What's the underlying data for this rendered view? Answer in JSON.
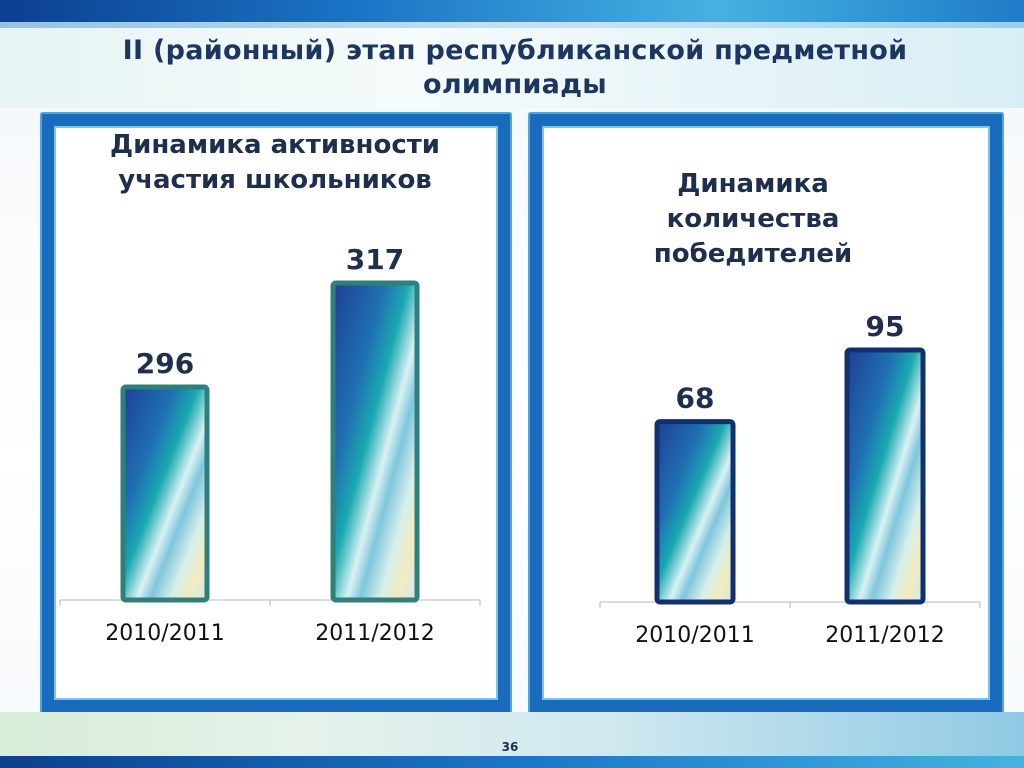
{
  "slide": {
    "title": "II (районный) этап республиканской предметной олимпиады",
    "page_number": "36",
    "colors": {
      "panel": "#1b6bbd",
      "bar_left_border": "#2f7f7a",
      "bar_right_border": "#13306e",
      "text": "#1d2f4c"
    }
  },
  "chart_data": [
    {
      "type": "bar",
      "title": "Динамика активности участия школьников",
      "categories": [
        "2010/2011",
        "2011/2012"
      ],
      "values": [
        296,
        317
      ],
      "data_labels": [
        "296",
        "317"
      ],
      "grid": false,
      "ylim": [
        253,
        322
      ]
    },
    {
      "type": "bar",
      "title": "Динамика количества победителей",
      "categories": [
        "2010/2011",
        "2011/2012"
      ],
      "values": [
        68,
        95
      ],
      "data_labels": [
        "68",
        "95"
      ],
      "grid": false,
      "ylim": [
        0,
        103
      ]
    }
  ]
}
